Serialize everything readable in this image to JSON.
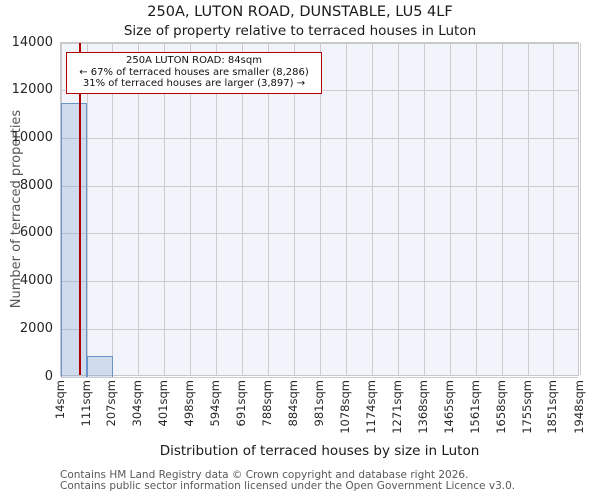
{
  "chart_data": {
    "type": "bar",
    "title": "250A, LUTON ROAD, DUNSTABLE, LU5 4LF",
    "subtitle": "Size of property relative to terraced houses in Luton",
    "xlabel": "Distribution of terraced houses by size in Luton",
    "ylabel": "Number of terraced properties",
    "xlim": [
      14,
      1948
    ],
    "ylim": [
      0,
      14000
    ],
    "grid": true,
    "x_tick_values": [
      14,
      111,
      207,
      304,
      401,
      498,
      594,
      691,
      788,
      884,
      981,
      1078,
      1174,
      1271,
      1368,
      1465,
      1561,
      1658,
      1755,
      1851,
      1948
    ],
    "x_tick_labels": [
      "14sqm",
      "111sqm",
      "207sqm",
      "304sqm",
      "401sqm",
      "498sqm",
      "594sqm",
      "691sqm",
      "788sqm",
      "884sqm",
      "981sqm",
      "1078sqm",
      "1174sqm",
      "1271sqm",
      "1368sqm",
      "1465sqm",
      "1561sqm",
      "1658sqm",
      "1755sqm",
      "1851sqm",
      "1948sqm"
    ],
    "y_ticks": [
      0,
      2000,
      4000,
      6000,
      8000,
      10000,
      12000,
      14000
    ],
    "bins": [
      {
        "x0": 14,
        "x1": 111,
        "count": 11500
      },
      {
        "x0": 111,
        "x1": 207,
        "count": 880
      }
    ],
    "marker": {
      "value": 84,
      "label": "250A LUTON ROAD: 84sqm"
    },
    "annotation": {
      "line1": "250A LUTON ROAD: 84sqm",
      "line2": "← 67% of terraced houses are smaller (8,286)",
      "line3": "31% of terraced houses are larger (3,897) →"
    },
    "colors": {
      "plot_bg": "#f1f4fb",
      "grid": "#cccccc",
      "plot_border": "#c8c8c8",
      "bar_fill": "rgba(106,148,200,0.25)",
      "bar_edge": "#6a94c8",
      "marker_line": "#b00000",
      "annotation_border": "#b00000"
    }
  },
  "footer": {
    "line1": "Contains HM Land Registry data © Crown copyright and database right 2026.",
    "line2": "Contains public sector information licensed under the Open Government Licence v3.0."
  }
}
